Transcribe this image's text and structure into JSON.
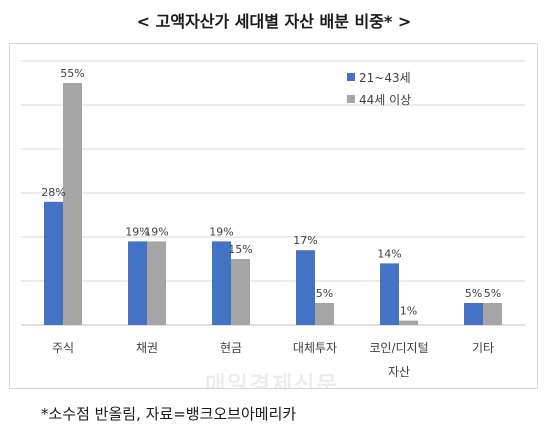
{
  "chart_data": {
    "type": "bar",
    "title": "< 고액자산가 세대별 자산 배분 비중* >",
    "categories": [
      [
        "주식"
      ],
      [
        "채권"
      ],
      [
        "현금"
      ],
      [
        "대체투자"
      ],
      [
        "코인/디지털",
        "자산"
      ],
      [
        "기타"
      ]
    ],
    "series": [
      {
        "name": "21~43세",
        "color": "#4472c4",
        "values": [
          28,
          19,
          19,
          17,
          14,
          5
        ]
      },
      {
        "name": "44세 이상",
        "color": "#a5a5a5",
        "values": [
          55,
          19,
          15,
          5,
          1,
          5
        ]
      }
    ],
    "value_suffix": "%",
    "ylim": [
      0,
      60
    ],
    "grid": true,
    "legend_position": "top-right"
  },
  "watermark": "매일경제신문",
  "footnote": "*소수점 반올림, 자료=뱅크오브아메리카"
}
